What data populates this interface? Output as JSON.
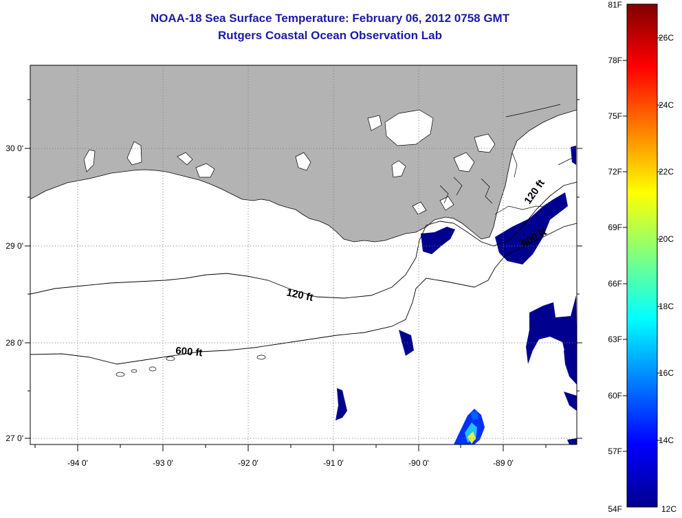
{
  "title": {
    "line1": "NOAA-18 Sea Surface Temperature:  February 06, 2012 0758 GMT",
    "line2": "Rutgers Coastal Ocean Observation Lab"
  },
  "map": {
    "lat_labels": [
      "30 0'",
      "29 0'",
      "28 0'",
      "27 0'"
    ],
    "lon_labels": [
      "-94 0'",
      "-93 0'",
      "-92 0'",
      "-91 0'",
      "-90 0'",
      "-89 0'"
    ],
    "contours": [
      {
        "label": "120 ft"
      },
      {
        "label": "600 ft"
      },
      {
        "label": "120 ft"
      },
      {
        "label": "600 ft"
      }
    ]
  },
  "colorbar": {
    "f_labels": [
      "81F",
      "78F",
      "75F",
      "72F",
      "69F",
      "66F",
      "63F",
      "60F",
      "57F",
      "54F"
    ],
    "c_labels": [
      "26C",
      "24C",
      "22C",
      "20C",
      "18C",
      "16C",
      "14C",
      "12C"
    ]
  },
  "colors": {
    "land": "#b3b3b3",
    "title": "#1a1aa6",
    "sst_cold": "#00008f"
  }
}
